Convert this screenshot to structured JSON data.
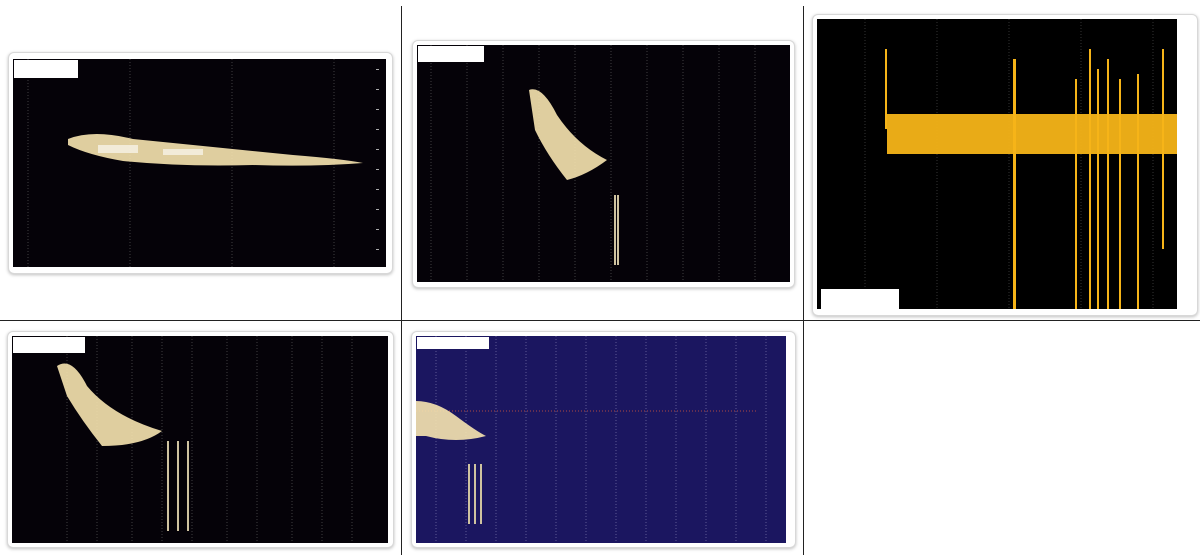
{
  "panels": [
    {
      "id": "p1",
      "info_lines": [
        "",
        "",
        ""
      ],
      "bg": "#050208",
      "blob": "#f7e4b0"
    },
    {
      "id": "p2",
      "info_lines": [
        "",
        "",
        ""
      ],
      "bg": "#050208",
      "blob": "#f7e4b0"
    },
    {
      "id": "p3",
      "info_lines": [
        "",
        "",
        ""
      ],
      "bg": "#000000",
      "blob": "#f6b418"
    },
    {
      "id": "p4",
      "info_lines": [
        "",
        "",
        ""
      ],
      "bg": "#050208",
      "blob": "#f7e4b0"
    },
    {
      "id": "p5",
      "info_lines": [
        "",
        ""
      ],
      "bg": "#1b1660",
      "blob": "#f7e4b0"
    }
  ]
}
